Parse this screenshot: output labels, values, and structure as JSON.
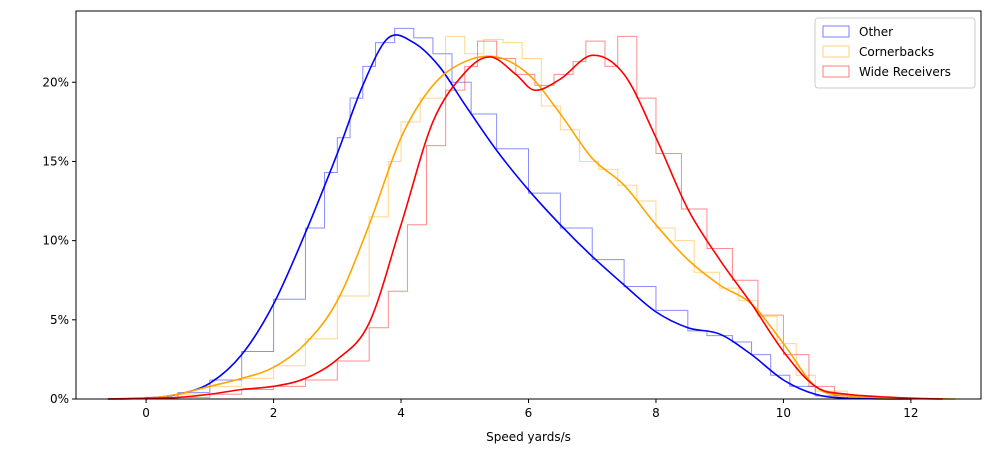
{
  "chart_data": {
    "type": "area",
    "title": "",
    "xlabel": "Speed yards/s",
    "ylabel": "",
    "xlim": [
      -1.1,
      13.1
    ],
    "ylim": [
      0,
      24.5
    ],
    "xticks": [
      0,
      2,
      4,
      6,
      8,
      10,
      12
    ],
    "yticks": [
      0,
      5,
      10,
      15,
      20
    ],
    "ytick_suffix": "%",
    "grid": false,
    "legend": "top-right",
    "series": [
      {
        "name": "Other",
        "color": "#0000ff",
        "kde": [
          [
            -0.6,
            0
          ],
          [
            0,
            0.05
          ],
          [
            0.5,
            0.3
          ],
          [
            1,
            1.0
          ],
          [
            1.5,
            2.8
          ],
          [
            2,
            6.0
          ],
          [
            2.5,
            10.5
          ],
          [
            3,
            15.5
          ],
          [
            3.4,
            19.8
          ],
          [
            3.8,
            22.8
          ],
          [
            4.2,
            22.5
          ],
          [
            4.6,
            21.0
          ],
          [
            5,
            18.6
          ],
          [
            5.5,
            15.7
          ],
          [
            6,
            13.2
          ],
          [
            6.5,
            11.0
          ],
          [
            7,
            9.0
          ],
          [
            7.5,
            7.2
          ],
          [
            8,
            5.5
          ],
          [
            8.5,
            4.5
          ],
          [
            9,
            4.1
          ],
          [
            9.5,
            2.8
          ],
          [
            10,
            1.2
          ],
          [
            10.5,
            0.3
          ],
          [
            11,
            0.05
          ],
          [
            12,
            0
          ]
        ],
        "hist": [
          [
            0,
            0.1
          ],
          [
            0.5,
            0.4
          ],
          [
            1,
            1.2
          ],
          [
            1.5,
            3.0
          ],
          [
            2,
            6.3
          ],
          [
            2.5,
            10.8
          ],
          [
            2.8,
            14.3
          ],
          [
            3,
            16.5
          ],
          [
            3.2,
            19.0
          ],
          [
            3.4,
            21.0
          ],
          [
            3.6,
            22.5
          ],
          [
            3.9,
            23.4
          ],
          [
            4.2,
            22.8
          ],
          [
            4.5,
            21.8
          ],
          [
            4.8,
            20.0
          ],
          [
            5.1,
            18.0
          ],
          [
            5.5,
            15.8
          ],
          [
            6,
            13.0
          ],
          [
            6.5,
            10.8
          ],
          [
            7,
            8.8
          ],
          [
            7.5,
            7.1
          ],
          [
            8,
            5.6
          ],
          [
            8.5,
            4.3
          ],
          [
            8.8,
            4.0
          ],
          [
            9.2,
            3.6
          ],
          [
            9.5,
            2.8
          ],
          [
            9.8,
            1.5
          ],
          [
            10.1,
            0.8
          ],
          [
            10.5,
            0.2
          ],
          [
            11,
            0
          ]
        ]
      },
      {
        "name": "Cornerbacks",
        "color": "#ffa500",
        "kde": [
          [
            -0.6,
            0
          ],
          [
            0,
            0.05
          ],
          [
            0.5,
            0.3
          ],
          [
            1,
            0.8
          ],
          [
            1.5,
            1.3
          ],
          [
            2,
            2.0
          ],
          [
            2.5,
            3.5
          ],
          [
            3,
            6.2
          ],
          [
            3.5,
            11.0
          ],
          [
            4,
            16.5
          ],
          [
            4.5,
            19.8
          ],
          [
            5,
            21.3
          ],
          [
            5.5,
            21.6
          ],
          [
            6,
            20.5
          ],
          [
            6.5,
            18.0
          ],
          [
            7,
            15.2
          ],
          [
            7.5,
            13.5
          ],
          [
            8,
            11.0
          ],
          [
            8.5,
            8.8
          ],
          [
            9,
            7.2
          ],
          [
            9.5,
            6.0
          ],
          [
            10,
            3.5
          ],
          [
            10.5,
            0.8
          ],
          [
            11,
            0.2
          ],
          [
            12,
            0.05
          ],
          [
            12.7,
            0
          ]
        ],
        "hist": [
          [
            0,
            0.1
          ],
          [
            0.5,
            0.3
          ],
          [
            1,
            0.8
          ],
          [
            1.5,
            1.3
          ],
          [
            2,
            2.1
          ],
          [
            2.5,
            3.8
          ],
          [
            3,
            6.5
          ],
          [
            3.5,
            11.5
          ],
          [
            3.8,
            15.0
          ],
          [
            4,
            17.5
          ],
          [
            4.3,
            19.0
          ],
          [
            4.7,
            22.9
          ],
          [
            5,
            21.8
          ],
          [
            5.3,
            22.7
          ],
          [
            5.6,
            22.5
          ],
          [
            5.9,
            21.5
          ],
          [
            6.2,
            18.5
          ],
          [
            6.5,
            17.0
          ],
          [
            6.8,
            15.0
          ],
          [
            7.1,
            14.5
          ],
          [
            7.4,
            13.5
          ],
          [
            7.7,
            12.5
          ],
          [
            8,
            10.8
          ],
          [
            8.3,
            10.0
          ],
          [
            8.6,
            8.0
          ],
          [
            9,
            7.0
          ],
          [
            9.3,
            6.2
          ],
          [
            9.6,
            5.2
          ],
          [
            9.9,
            3.5
          ],
          [
            10.2,
            1.5
          ],
          [
            10.5,
            0.5
          ],
          [
            11,
            0
          ]
        ]
      },
      {
        "name": "Wide Receivers",
        "color": "#ff0000",
        "kde": [
          [
            -0.6,
            0
          ],
          [
            0,
            0.05
          ],
          [
            0.5,
            0.1
          ],
          [
            1,
            0.3
          ],
          [
            1.5,
            0.6
          ],
          [
            2,
            0.8
          ],
          [
            2.5,
            1.3
          ],
          [
            3,
            2.5
          ],
          [
            3.5,
            4.8
          ],
          [
            4,
            11.0
          ],
          [
            4.5,
            17.5
          ],
          [
            5,
            20.6
          ],
          [
            5.4,
            21.6
          ],
          [
            5.8,
            20.5
          ],
          [
            6.1,
            19.5
          ],
          [
            6.5,
            20.2
          ],
          [
            7,
            21.7
          ],
          [
            7.5,
            20.5
          ],
          [
            8,
            16.5
          ],
          [
            8.5,
            12.0
          ],
          [
            9,
            8.8
          ],
          [
            9.5,
            6.0
          ],
          [
            10,
            3.0
          ],
          [
            10.5,
            0.8
          ],
          [
            11,
            0.3
          ],
          [
            12,
            0.05
          ],
          [
            12.5,
            0
          ]
        ],
        "hist": [
          [
            0.5,
            0.1
          ],
          [
            1,
            0.3
          ],
          [
            1.5,
            0.6
          ],
          [
            2,
            0.8
          ],
          [
            2.5,
            1.2
          ],
          [
            3,
            2.4
          ],
          [
            3.5,
            4.5
          ],
          [
            3.8,
            6.8
          ],
          [
            4.1,
            11.0
          ],
          [
            4.4,
            16.0
          ],
          [
            4.7,
            19.5
          ],
          [
            5,
            21.0
          ],
          [
            5.2,
            22.6
          ],
          [
            5.5,
            21.5
          ],
          [
            5.8,
            20.5
          ],
          [
            6.1,
            19.8
          ],
          [
            6.4,
            20.5
          ],
          [
            6.7,
            21.3
          ],
          [
            6.9,
            22.6
          ],
          [
            7.2,
            21.0
          ],
          [
            7.4,
            22.9
          ],
          [
            7.7,
            19.0
          ],
          [
            8,
            15.5
          ],
          [
            8.4,
            12.0
          ],
          [
            8.8,
            9.5
          ],
          [
            9.2,
            7.5
          ],
          [
            9.6,
            5.3
          ],
          [
            10,
            2.8
          ],
          [
            10.4,
            0.8
          ],
          [
            10.8,
            0.2
          ],
          [
            11.2,
            0
          ]
        ]
      }
    ]
  }
}
